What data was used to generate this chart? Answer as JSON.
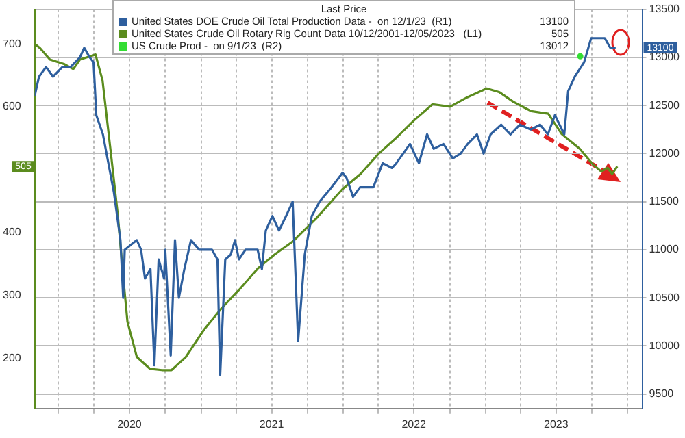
{
  "chart_data": {
    "type": "line",
    "legend_title": "Last Price",
    "legend": "top",
    "grid": true,
    "xlim": [
      "2019-11-01",
      "2024-02-07"
    ],
    "xticks": [
      {
        "value": "2020-01-01",
        "label": null
      },
      {
        "value": "2020-04-01",
        "label": null
      },
      {
        "value": "2020-07-01",
        "label": "2020"
      },
      {
        "value": "2020-10-01",
        "label": null
      },
      {
        "value": "2021-01-01",
        "label": null
      },
      {
        "value": "2021-04-01",
        "label": null
      },
      {
        "value": "2021-07-01",
        "label": "2021"
      },
      {
        "value": "2021-10-01",
        "label": null
      },
      {
        "value": "2022-01-01",
        "label": null
      },
      {
        "value": "2022-04-01",
        "label": null
      },
      {
        "value": "2022-07-01",
        "label": "2022"
      },
      {
        "value": "2022-10-01",
        "label": null
      },
      {
        "value": "2023-01-01",
        "label": null
      },
      {
        "value": "2023-04-01",
        "label": null
      },
      {
        "value": "2023-07-01",
        "label": "2023"
      },
      {
        "value": "2023-10-01",
        "label": null
      },
      {
        "value": "2024-01-01",
        "label": null
      }
    ],
    "ylim": [
      120,
      755
    ],
    "yticks": [
      200,
      300,
      400,
      600,
      700
    ],
    "y2lim": [
      9350,
      13500
    ],
    "y2ticks": [
      9500,
      10000,
      10500,
      11000,
      11500,
      12000,
      12500,
      13000,
      13500
    ],
    "series": [
      {
        "name": "United States DOE Crude Oil Total Production Data -  on 12/1/23  (R1)",
        "color": "#2e5f9e",
        "axis": "y2",
        "x": [
          "2019-11-01",
          "2019-11-12",
          "2019-11-30",
          "2019-12-18",
          "2020-01-11",
          "2020-02-01",
          "2020-02-25",
          "2020-03-07",
          "2020-03-21",
          "2020-03-31",
          "2020-04-07",
          "2020-04-24",
          "2020-05-22",
          "2020-06-08",
          "2020-06-15",
          "2020-06-19",
          "2020-07-20",
          "2020-07-31",
          "2020-08-10",
          "2020-08-24",
          "2020-09-03",
          "2020-09-14",
          "2020-09-28",
          "2020-10-01",
          "2020-10-15",
          "2020-10-26",
          "2020-11-05",
          "2020-11-19",
          "2020-12-06",
          "2020-12-27",
          "2021-01-29",
          "2021-02-12",
          "2021-02-19",
          "2021-03-04",
          "2021-03-18",
          "2021-03-29",
          "2021-04-08",
          "2021-04-25",
          "2021-05-26",
          "2021-06-06",
          "2021-06-16",
          "2021-07-03",
          "2021-07-20",
          "2021-08-07",
          "2021-08-24",
          "2021-09-07",
          "2021-09-24",
          "2021-10-12",
          "2021-11-01",
          "2021-12-02",
          "2021-12-30",
          "2022-01-09",
          "2022-01-26",
          "2022-02-13",
          "2022-03-19",
          "2022-04-12",
          "2022-05-06",
          "2022-05-17",
          "2022-06-21",
          "2022-07-14",
          "2022-08-04",
          "2022-08-21",
          "2022-09-15",
          "2022-10-09",
          "2022-10-29",
          "2022-11-16",
          "2022-12-10",
          "2022-12-27",
          "2023-01-14",
          "2023-02-10",
          "2023-03-06",
          "2023-03-30",
          "2023-04-27",
          "2023-05-21",
          "2023-06-10",
          "2023-06-28",
          "2023-07-22",
          "2023-08-01",
          "2023-08-18",
          "2023-09-11",
          "2023-09-29",
          "2023-11-03",
          "2023-11-17",
          "2023-12-01"
        ],
        "values": [
          12600,
          12800,
          12900,
          12800,
          12900,
          12900,
          13000,
          13100,
          13000,
          12950,
          12400,
          12200,
          11600,
          11100,
          10500,
          11000,
          11100,
          11000,
          10700,
          10800,
          9800,
          10900,
          10700,
          11000,
          9900,
          11100,
          10500,
          10800,
          11100,
          11000,
          11000,
          10900,
          9700,
          10900,
          10950,
          11100,
          10900,
          11000,
          11000,
          10800,
          11200,
          11350,
          11200,
          11350,
          11500,
          10050,
          10950,
          11350,
          11500,
          11650,
          11800,
          11750,
          11550,
          11650,
          11650,
          11900,
          11850,
          11900,
          12100,
          11900,
          12200,
          12050,
          12100,
          11950,
          12000,
          12100,
          12200,
          12000,
          12200,
          12300,
          12200,
          12300,
          12250,
          12300,
          12200,
          12400,
          12200,
          12650,
          12800,
          12950,
          13200,
          13200,
          13100,
          13100
        ]
      },
      {
        "name": "United States Crude Oil Rotary Rig Count Data 10/12/2001-12/05/2023   (L1)",
        "color": "#5b8c1e",
        "axis": "y",
        "x": [
          "2019-11-01",
          "2019-11-15",
          "2019-12-10",
          "2020-01-15",
          "2020-02-08",
          "2020-02-25",
          "2020-04-05",
          "2020-04-23",
          "2020-05-15",
          "2020-06-01",
          "2020-06-15",
          "2020-06-26",
          "2020-07-20",
          "2020-08-23",
          "2020-09-22",
          "2020-10-17",
          "2020-11-23",
          "2021-01-08",
          "2021-02-22",
          "2021-04-09",
          "2021-05-27",
          "2021-07-09",
          "2021-08-25",
          "2021-10-23",
          "2021-12-30",
          "2022-02-14",
          "2022-04-01",
          "2022-05-16",
          "2022-07-01",
          "2022-08-18",
          "2022-10-02",
          "2022-11-15",
          "2023-01-04",
          "2023-02-06",
          "2023-03-13",
          "2023-04-28",
          "2023-06-11",
          "2023-07-15",
          "2023-08-31",
          "2023-10-04",
          "2023-10-25",
          "2023-11-10",
          "2023-11-22",
          "2023-12-05"
        ],
        "values": [
          700,
          693,
          675,
          668,
          660,
          675,
          683,
          642,
          523,
          429,
          330,
          258,
          202,
          183,
          181,
          181,
          202,
          245,
          279,
          309,
          343,
          365,
          386,
          422,
          469,
          493,
          525,
          550,
          578,
          604,
          600,
          615,
          629,
          623,
          608,
          593,
          589,
          557,
          533,
          508,
          497,
          503,
          493,
          505
        ]
      },
      {
        "name": "US Crude Prod -  on 9/1/23  (R2)",
        "color": "#33dd33",
        "axis": "y2",
        "marker": "circle",
        "x": [
          "2023-09-01"
        ],
        "values": [
          13012
        ]
      }
    ],
    "annotations": [
      "13100",
      "505",
      "13012",
      "13100",
      "505"
    ]
  }
}
